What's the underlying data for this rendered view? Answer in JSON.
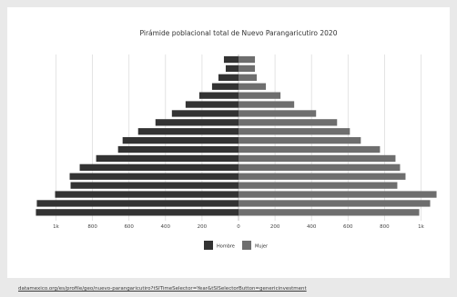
{
  "chart_data": {
    "type": "bar",
    "orientation": "horizontal-diverging",
    "title": "Pirámide poblacional total de Nuevo Parangaricutiro 2020",
    "x_ticks": [
      {
        "value": -1000,
        "label": "1k"
      },
      {
        "value": -800,
        "label": "800"
      },
      {
        "value": -600,
        "label": "600"
      },
      {
        "value": -400,
        "label": "400"
      },
      {
        "value": -200,
        "label": "200"
      },
      {
        "value": 0,
        "label": "0"
      },
      {
        "value": 200,
        "label": "200"
      },
      {
        "value": 400,
        "label": "400"
      },
      {
        "value": 600,
        "label": "600"
      },
      {
        "value": 800,
        "label": "800"
      },
      {
        "value": 1000,
        "label": "1k"
      }
    ],
    "xlim": [
      -1000,
      1000
    ],
    "grid": true,
    "legend_position": "bottom-center",
    "series": [
      {
        "name": "Hombre",
        "color": "#333333",
        "values": [
          1110,
          1105,
          1005,
          920,
          925,
          870,
          780,
          660,
          635,
          550,
          455,
          365,
          290,
          215,
          145,
          110,
          70,
          80
        ]
      },
      {
        "name": "Mujer",
        "color": "#6e6e6e",
        "values": [
          990,
          1050,
          1085,
          870,
          915,
          885,
          860,
          775,
          670,
          610,
          540,
          425,
          305,
          230,
          150,
          100,
          90,
          90
        ]
      }
    ]
  },
  "legend": {
    "items": [
      {
        "label": "Hombre",
        "color": "#333333"
      },
      {
        "label": "Mujer",
        "color": "#6e6e6e"
      }
    ]
  },
  "source_link": "datamexico.org/es/profile/geo/nuevo-parangaricutiro?tSlTimeSelector=Year&tSlSelectorButton=genericinvestment"
}
